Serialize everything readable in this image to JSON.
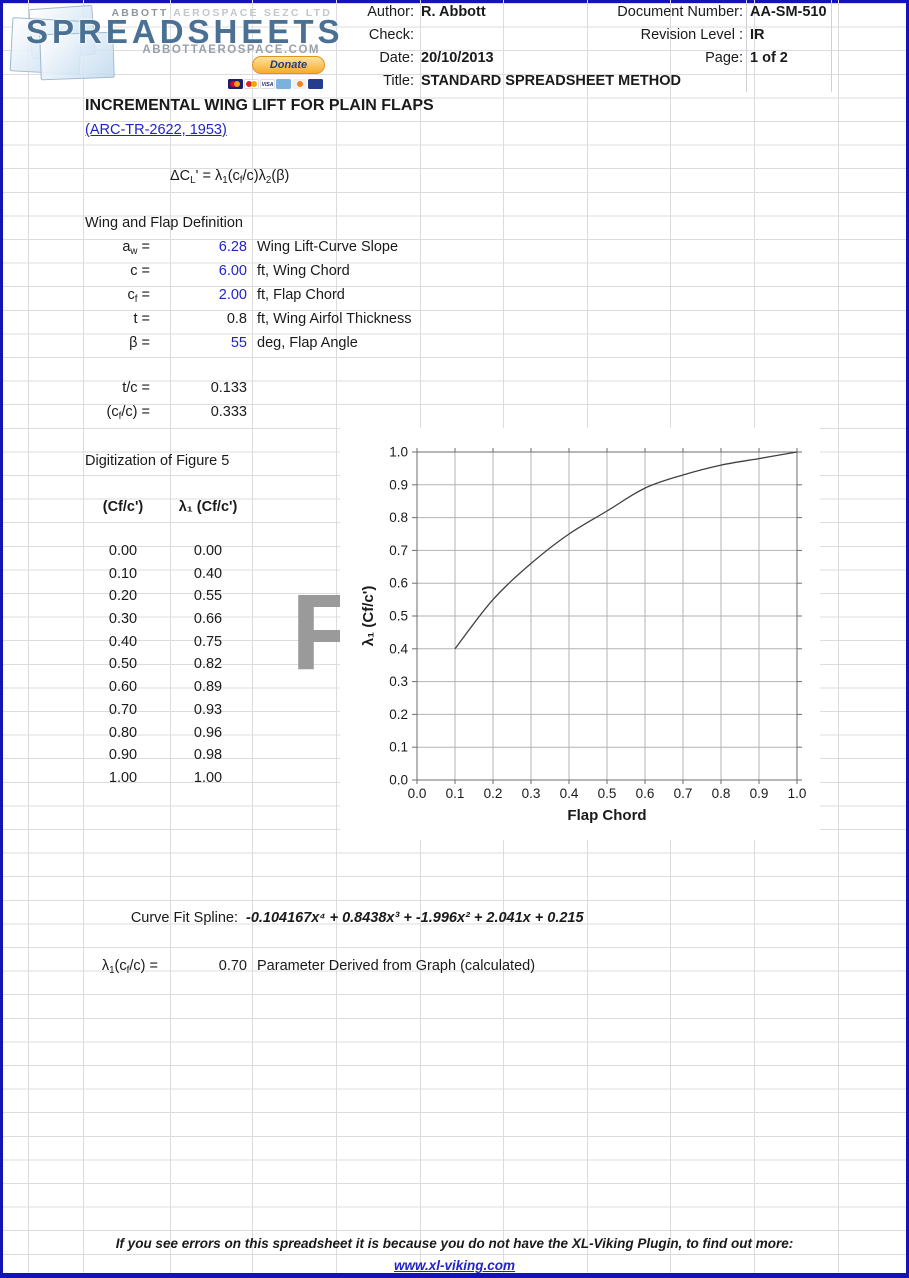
{
  "header": {
    "brand": {
      "top_dark": "ABBOTT",
      "top_light": " AEROSPACE SEZC LTD",
      "main": "SPREADSHEETS",
      "sub": "ABBOTTAEROSPACE.COM",
      "donate": "Donate",
      "payment_icons": [
        "mastercard",
        "maestro",
        "visa",
        "amex",
        "discover",
        "bank-transfer"
      ]
    },
    "fields": {
      "author_label": "Author:",
      "author": "R. Abbott",
      "check_label": "Check:",
      "check": "",
      "date_label": "Date:",
      "date": "20/10/2013",
      "title_label": "Title:",
      "title": "STANDARD SPREADSHEET METHOD",
      "doc_label": "Document Number:",
      "doc": "AA-SM-510",
      "rev_label": "Revision Level :",
      "rev": "IR",
      "page_label": "Page:",
      "page": "1 of 2"
    }
  },
  "doc": {
    "heading": "INCREMENTAL WING LIFT FOR PLAIN FLAPS",
    "reference": "(ARC-TR-2622, 1953)",
    "formula": [
      {
        "t": "ΔC"
      },
      {
        "t": "L",
        "sub": true
      },
      {
        "t": "' = λ"
      },
      {
        "t": "1",
        "sub": true
      },
      {
        "t": "(c"
      },
      {
        "t": "f",
        "sub": true
      },
      {
        "t": "/c)λ"
      },
      {
        "t": "2",
        "sub": true
      },
      {
        "t": "(β)"
      }
    ]
  },
  "definition": {
    "title": "Wing and Flap Definition",
    "rows": [
      {
        "label": [
          {
            "t": "a"
          },
          {
            "t": "w",
            "sub": true
          },
          {
            "t": " ="
          }
        ],
        "value": "6.28",
        "color": "#2222cc",
        "desc": "Wing Lift-Curve Slope"
      },
      {
        "label": [
          {
            "t": "c ="
          }
        ],
        "value": "6.00",
        "color": "#2222cc",
        "desc": "ft, Wing Chord"
      },
      {
        "label": [
          {
            "t": "c"
          },
          {
            "t": "f",
            "sub": true
          },
          {
            "t": " ="
          }
        ],
        "value": "2.00",
        "color": "#2222cc",
        "desc": "ft, Flap Chord"
      },
      {
        "label": [
          {
            "t": "t ="
          }
        ],
        "value": "0.8",
        "color": "#1a1a1a",
        "desc": "ft, Wing Airfol Thickness"
      },
      {
        "label": [
          {
            "t": "β ="
          }
        ],
        "value": "55",
        "color": "#2222cc",
        "desc": "deg, Flap Angle"
      }
    ],
    "derived": [
      {
        "label": [
          {
            "t": "t/c ="
          }
        ],
        "value": "0.133"
      },
      {
        "label": [
          {
            "t": "(c"
          },
          {
            "t": "f",
            "sub": true
          },
          {
            "t": "/c) ="
          }
        ],
        "value": "0.333"
      }
    ]
  },
  "digitization": {
    "title": "Digitization of Figure 5",
    "col1_header": "(Cf/c')",
    "col2_header": "λ₁ (Cf/c')",
    "rows": [
      [
        "0.00",
        "0.00"
      ],
      [
        "0.10",
        "0.40"
      ],
      [
        "0.20",
        "0.55"
      ],
      [
        "0.30",
        "0.66"
      ],
      [
        "0.40",
        "0.75"
      ],
      [
        "0.50",
        "0.82"
      ],
      [
        "0.60",
        "0.89"
      ],
      [
        "0.70",
        "0.93"
      ],
      [
        "0.80",
        "0.96"
      ],
      [
        "0.90",
        "0.98"
      ],
      [
        "1.00",
        "1.00"
      ]
    ]
  },
  "watermark": "F",
  "chart_data": {
    "type": "line",
    "x": [
      0.1,
      0.2,
      0.3,
      0.4,
      0.5,
      0.6,
      0.7,
      0.8,
      0.9,
      1.0
    ],
    "y": [
      0.4,
      0.55,
      0.66,
      0.75,
      0.82,
      0.89,
      0.93,
      0.96,
      0.98,
      1.0
    ],
    "xlabel": "Flap Chord",
    "ylabel": "λ₁ (Cf/c')",
    "xlim": [
      0,
      1
    ],
    "ylim": [
      0,
      1
    ],
    "xtick_step": 0.1,
    "ytick_step": 0.1,
    "grid": true,
    "line_color": "#404040",
    "grid_color": "#b3b3b3",
    "frame_color": "#6e6e6e"
  },
  "results": {
    "spline_label": "Curve Fit Spline:",
    "spline": "-0.104167x⁴ + 0.8438x³ + -1.996x² + 2.041x + 0.215",
    "lambda_label": [
      {
        "t": "λ"
      },
      {
        "t": "1",
        "sub": true
      },
      {
        "t": "(c"
      },
      {
        "t": "f",
        "sub": true
      },
      {
        "t": "/c) ="
      }
    ],
    "lambda_value": "0.70",
    "lambda_desc": "Parameter Derived from Graph (calculated)"
  },
  "footer": {
    "notice": "If you see errors on this spreadsheet it is because you do not have the XL-Viking Plugin, to find out more:",
    "link": "www.xl-viking.com"
  },
  "colors": {
    "input_value": "#2222cc",
    "link": "#2222cc",
    "page_border": "#1414b4",
    "gridline": "#dcdce0",
    "watermark": "#9a9a9a",
    "brand_blue": "#4a7093"
  }
}
